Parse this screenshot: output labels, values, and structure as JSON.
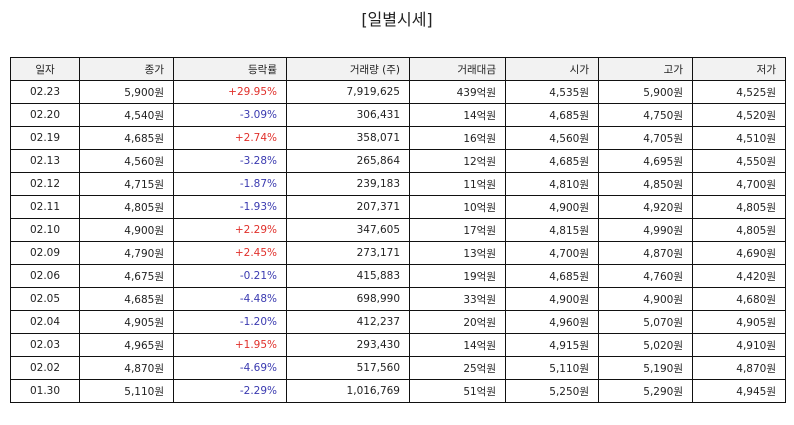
{
  "title": "[일별시세]",
  "table": {
    "headers": [
      "일자",
      "종가",
      "등락률",
      "거래량 (주)",
      "거래대금",
      "시가",
      "고가",
      "저가"
    ],
    "rows": [
      [
        "02.23",
        "5,900원",
        "+29.95%",
        "7,919,625",
        "439억원",
        "4,535원",
        "5,900원",
        "4,525원"
      ],
      [
        "02.20",
        "4,540원",
        "-3.09%",
        "306,431",
        "14억원",
        "4,685원",
        "4,750원",
        "4,520원"
      ],
      [
        "02.19",
        "4,685원",
        "+2.74%",
        "358,071",
        "16억원",
        "4,560원",
        "4,705원",
        "4,510원"
      ],
      [
        "02.13",
        "4,560원",
        "-3.28%",
        "265,864",
        "12억원",
        "4,685원",
        "4,695원",
        "4,550원"
      ],
      [
        "02.12",
        "4,715원",
        "-1.87%",
        "239,183",
        "11억원",
        "4,810원",
        "4,850원",
        "4,700원"
      ],
      [
        "02.11",
        "4,805원",
        "-1.93%",
        "207,371",
        "10억원",
        "4,900원",
        "4,920원",
        "4,805원"
      ],
      [
        "02.10",
        "4,900원",
        "+2.29%",
        "347,605",
        "17억원",
        "4,815원",
        "4,990원",
        "4,805원"
      ],
      [
        "02.09",
        "4,790원",
        "+2.45%",
        "273,171",
        "13억원",
        "4,700원",
        "4,870원",
        "4,690원"
      ],
      [
        "02.06",
        "4,675원",
        "-0.21%",
        "415,883",
        "19억원",
        "4,685원",
        "4,760원",
        "4,420원"
      ],
      [
        "02.05",
        "4,685원",
        "-4.48%",
        "698,990",
        "33억원",
        "4,900원",
        "4,900원",
        "4,680원"
      ],
      [
        "02.04",
        "4,905원",
        "-1.20%",
        "412,237",
        "20억원",
        "4,960원",
        "5,070원",
        "4,905원"
      ],
      [
        "02.03",
        "4,965원",
        "+1.95%",
        "293,430",
        "14억원",
        "4,915원",
        "5,020원",
        "4,910원"
      ],
      [
        "02.02",
        "4,870원",
        "-4.69%",
        "517,560",
        "25억원",
        "5,110원",
        "5,190원",
        "4,870원"
      ],
      [
        "01.30",
        "5,110원",
        "-2.29%",
        "1,016,769",
        "51억원",
        "5,250원",
        "5,290원",
        "4,945원"
      ]
    ]
  }
}
